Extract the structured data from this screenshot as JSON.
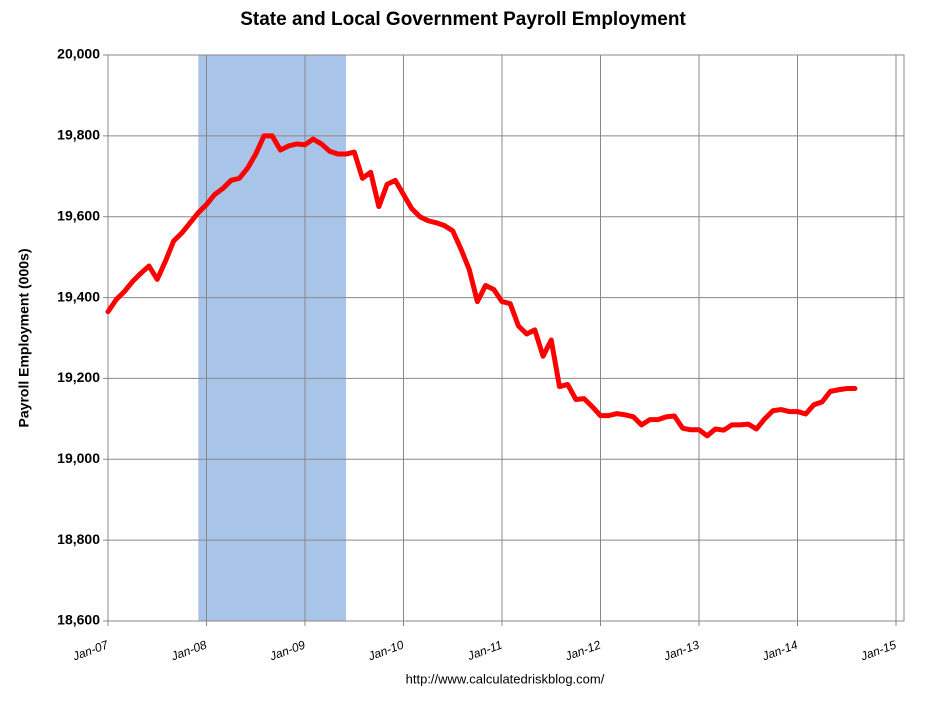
{
  "chart_data": {
    "type": "line",
    "title": "State and Local Government Payroll Employment",
    "y_label": "Payroll Employment (000s)",
    "source": "http://www.calculatedriskblog.com/",
    "x": [
      "2007-01",
      "2007-02",
      "2007-03",
      "2007-04",
      "2007-05",
      "2007-06",
      "2007-07",
      "2007-08",
      "2007-09",
      "2007-10",
      "2007-11",
      "2007-12",
      "2008-01",
      "2008-02",
      "2008-03",
      "2008-04",
      "2008-05",
      "2008-06",
      "2008-07",
      "2008-08",
      "2008-09",
      "2008-10",
      "2008-11",
      "2008-12",
      "2009-01",
      "2009-02",
      "2009-03",
      "2009-04",
      "2009-05",
      "2009-06",
      "2009-07",
      "2009-08",
      "2009-09",
      "2009-10",
      "2009-11",
      "2009-12",
      "2010-01",
      "2010-02",
      "2010-03",
      "2010-04",
      "2010-05",
      "2010-06",
      "2010-07",
      "2010-08",
      "2010-09",
      "2010-10",
      "2010-11",
      "2010-12",
      "2011-01",
      "2011-02",
      "2011-03",
      "2011-04",
      "2011-05",
      "2011-06",
      "2011-07",
      "2011-08",
      "2011-09",
      "2011-10",
      "2011-11",
      "2011-12",
      "2012-01",
      "2012-02",
      "2012-03",
      "2012-04",
      "2012-05",
      "2012-06",
      "2012-07",
      "2012-08",
      "2012-09",
      "2012-10",
      "2012-11",
      "2012-12",
      "2013-01",
      "2013-02",
      "2013-03",
      "2013-04",
      "2013-05",
      "2013-06",
      "2013-07",
      "2013-08",
      "2013-09",
      "2013-10",
      "2013-11",
      "2013-12",
      "2014-01",
      "2014-02",
      "2014-03",
      "2014-04",
      "2014-05",
      "2014-06",
      "2014-07",
      "2014-08"
    ],
    "series": [
      {
        "name": "State and Local Government Payroll Employment",
        "color": "#ff0000",
        "values": [
          19365,
          19395,
          19415,
          19440,
          19460,
          19478,
          19445,
          19490,
          19540,
          19560,
          19585,
          19610,
          19630,
          19655,
          19670,
          19690,
          19695,
          19720,
          19755,
          19800,
          19800,
          19765,
          19775,
          19780,
          19778,
          19792,
          19780,
          19762,
          19755,
          19755,
          19760,
          19695,
          19710,
          19625,
          19680,
          19690,
          19655,
          19620,
          19600,
          19590,
          19585,
          19578,
          19565,
          19520,
          19470,
          19390,
          19430,
          19420,
          19390,
          19385,
          19330,
          19310,
          19320,
          19255,
          19295,
          19180,
          19185,
          19148,
          19150,
          19130,
          19108,
          19108,
          19113,
          19110,
          19105,
          19085,
          19098,
          19098,
          19105,
          19107,
          19077,
          19073,
          19073,
          19058,
          19075,
          19072,
          19085,
          19085,
          19087,
          19075,
          19100,
          19120,
          19123,
          19118,
          19118,
          19112,
          19135,
          19142,
          19168,
          19172,
          19175,
          19175
        ]
      }
    ],
    "xlim": [
      "2007-01",
      "2015-01"
    ],
    "xticks": [
      {
        "value": "2007-01",
        "label": "Jan-07"
      },
      {
        "value": "2008-01",
        "label": "Jan-08"
      },
      {
        "value": "2009-01",
        "label": "Jan-09"
      },
      {
        "value": "2010-01",
        "label": "Jan-10"
      },
      {
        "value": "2011-01",
        "label": "Jan-11"
      },
      {
        "value": "2012-01",
        "label": "Jan-12"
      },
      {
        "value": "2013-01",
        "label": "Jan-13"
      },
      {
        "value": "2014-01",
        "label": "Jan-14"
      },
      {
        "value": "2015-01",
        "label": "Jan-15"
      }
    ],
    "ylim": [
      18600,
      20000
    ],
    "yticks": [
      {
        "value": 18600,
        "label": "18,600"
      },
      {
        "value": 18800,
        "label": "18,800"
      },
      {
        "value": 19000,
        "label": "19,000"
      },
      {
        "value": 19200,
        "label": "19,200"
      },
      {
        "value": 19400,
        "label": "19,400"
      },
      {
        "value": 19600,
        "label": "19,600"
      },
      {
        "value": 19800,
        "label": "19,800"
      },
      {
        "value": 20000,
        "label": "20,000"
      }
    ],
    "grid": true,
    "shaded_periods": [
      {
        "start": "2007-12",
        "end": "2009-06",
        "color": "#a9c4e9"
      }
    ]
  }
}
